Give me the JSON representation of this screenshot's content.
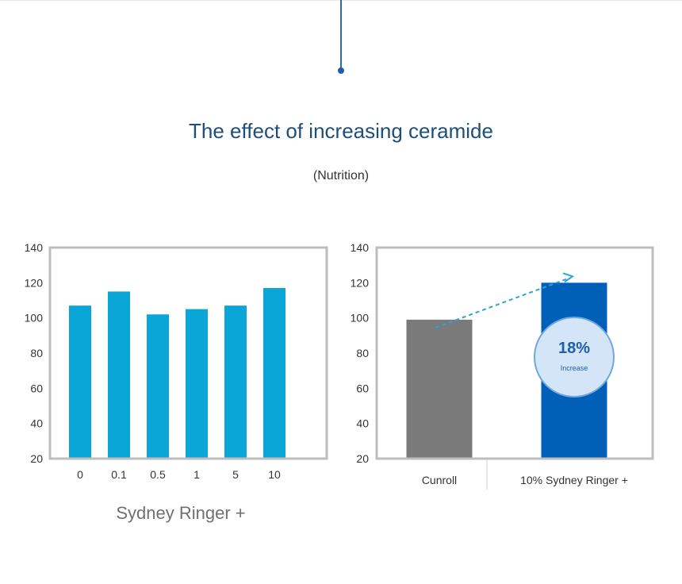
{
  "header": {
    "title": "The effect of increasing ceramide",
    "subtitle": "(Nutrition)"
  },
  "colors": {
    "accent_line": "#2a6aa8",
    "left_bar": "#0aa6d8",
    "control_bar": "#7a7a7a",
    "treatment_bar": "#0060b8",
    "frame": "#bdbdbd",
    "badge_text": "#1f5fa8",
    "arrow": "#2aa6d8"
  },
  "chart_data": [
    {
      "type": "bar",
      "categories": [
        "0",
        "0.1",
        "0.5",
        "1",
        "5",
        "10"
      ],
      "values": [
        107,
        115,
        102,
        105,
        107,
        117
      ],
      "ylim": [
        20,
        140
      ],
      "yticks": [
        20,
        40,
        60,
        80,
        100,
        120,
        140
      ],
      "xlabel": "Sydney Ringer +",
      "grid": false
    },
    {
      "type": "bar",
      "categories": [
        "Cunroll",
        "10% Sydney Ringer +"
      ],
      "values": [
        99,
        120
      ],
      "ylim": [
        20,
        140
      ],
      "yticks": [
        20,
        40,
        60,
        80,
        100,
        120,
        140
      ],
      "grid": false,
      "annotation": {
        "value": "18%",
        "label": "Increase"
      }
    }
  ]
}
